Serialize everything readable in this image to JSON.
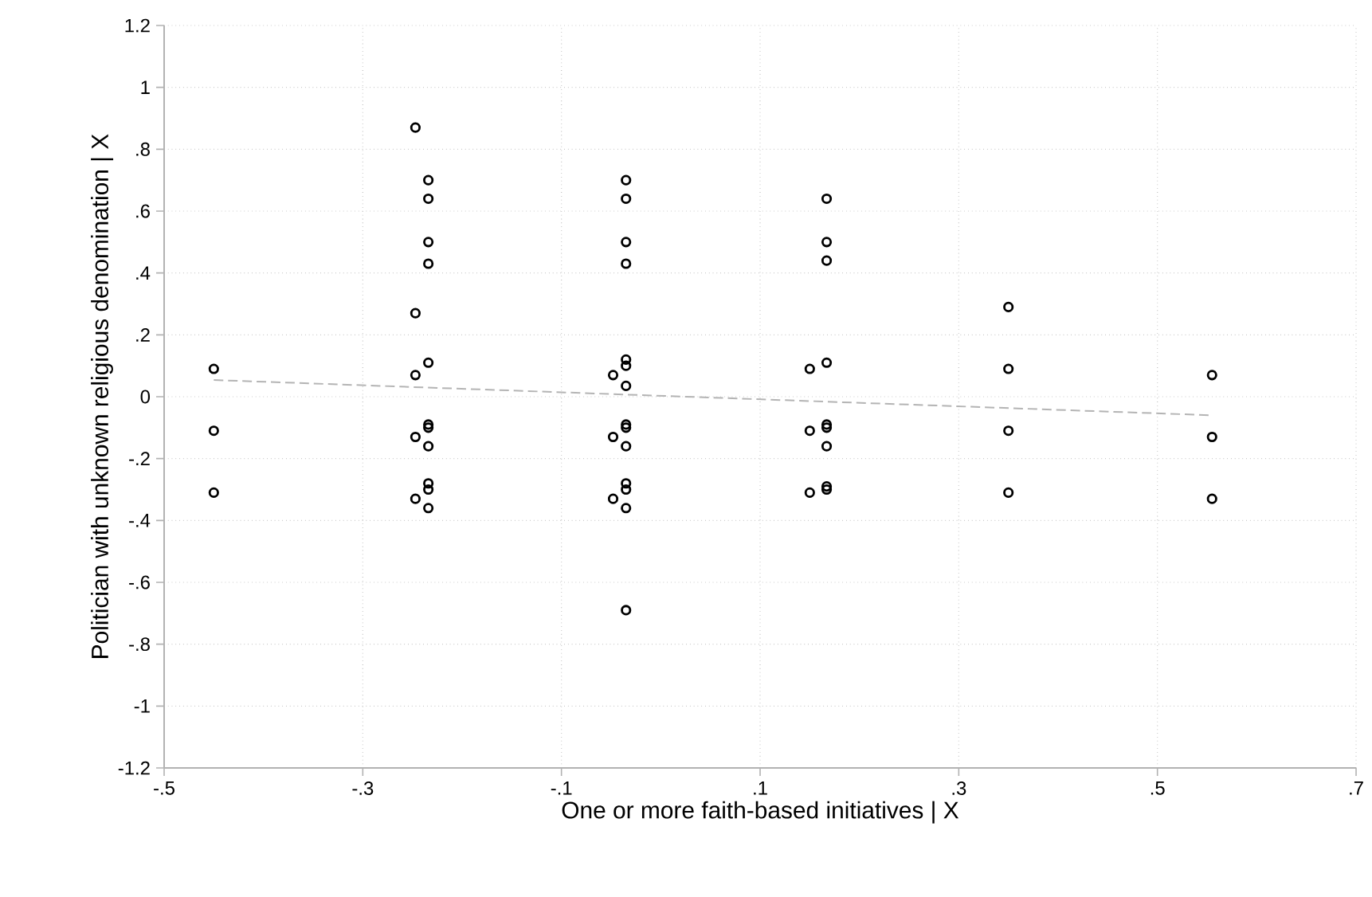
{
  "chart_data": {
    "type": "scatter",
    "xlabel": "One or more faith-based initiatives | X",
    "ylabel": "Politician with unknown religious denomination | X",
    "series": [
      {
        "color": "#000000",
        "marker": "circle",
        "x": [
          -0.45,
          -0.45,
          -0.45,
          -0.247,
          -0.247,
          -0.247,
          -0.247,
          -0.247,
          -0.234,
          -0.234,
          -0.234,
          -0.234,
          -0.234,
          -0.234,
          -0.234,
          -0.234,
          -0.234,
          -0.234,
          -0.234,
          -0.048,
          -0.048,
          -0.048,
          -0.035,
          -0.035,
          -0.035,
          -0.035,
          -0.035,
          -0.035,
          -0.035,
          -0.035,
          -0.035,
          -0.035,
          -0.035,
          -0.035,
          -0.035,
          -0.035,
          0.15,
          0.15,
          0.15,
          0.167,
          0.167,
          0.167,
          0.167,
          0.167,
          0.167,
          0.167,
          0.167,
          0.167,
          0.35,
          0.35,
          0.35,
          0.35,
          0.555,
          0.555,
          0.555
        ],
        "values": [
          0.09,
          -0.11,
          -0.31,
          0.87,
          0.27,
          0.07,
          -0.13,
          -0.33,
          0.7,
          0.64,
          0.5,
          0.43,
          0.11,
          -0.09,
          -0.1,
          -0.16,
          -0.28,
          -0.3,
          -0.36,
          0.07,
          -0.13,
          -0.33,
          0.7,
          0.64,
          0.5,
          0.43,
          0.12,
          0.1,
          0.035,
          -0.09,
          -0.1,
          -0.16,
          -0.28,
          -0.3,
          -0.36,
          -0.69,
          0.09,
          -0.11,
          -0.31,
          0.64,
          0.5,
          0.44,
          0.11,
          -0.09,
          -0.1,
          -0.16,
          -0.29,
          -0.3,
          0.29,
          0.09,
          -0.11,
          -0.31,
          0.07,
          -0.13,
          -0.33
        ]
      },
      {
        "type": "line",
        "color": "#b4b4b4",
        "line_style": "dashed",
        "marker": "none",
        "x": [
          -0.45,
          0.555
        ],
        "values": [
          0.054,
          -0.06
        ]
      }
    ],
    "xlim": [
      -0.5,
      0.7
    ],
    "xticks": [
      {
        "value": -0.5,
        "label": "-.5"
      },
      {
        "value": -0.3,
        "label": "-.3"
      },
      {
        "value": -0.1,
        "label": "-.1"
      },
      {
        "value": 0.1,
        "label": ".1"
      },
      {
        "value": 0.3,
        "label": ".3"
      },
      {
        "value": 0.5,
        "label": ".5"
      },
      {
        "value": 0.7,
        "label": ".7"
      }
    ],
    "ylim": [
      -1.2,
      1.2
    ],
    "yticks": [
      {
        "value": -1.2,
        "label": "-1.2"
      },
      {
        "value": -1,
        "label": "-1"
      },
      {
        "value": -0.8,
        "label": "-.8"
      },
      {
        "value": -0.6,
        "label": "-.6"
      },
      {
        "value": -0.4,
        "label": "-.4"
      },
      {
        "value": -0.2,
        "label": "-.2"
      },
      {
        "value": 0,
        "label": "0"
      },
      {
        "value": 0.2,
        "label": ".2"
      },
      {
        "value": 0.4,
        "label": ".4"
      },
      {
        "value": 0.6,
        "label": ".6"
      },
      {
        "value": 0.8,
        "label": ".8"
      },
      {
        "value": 1,
        "label": "1"
      },
      {
        "value": 1.2,
        "label": "1.2"
      }
    ],
    "grid": true
  }
}
